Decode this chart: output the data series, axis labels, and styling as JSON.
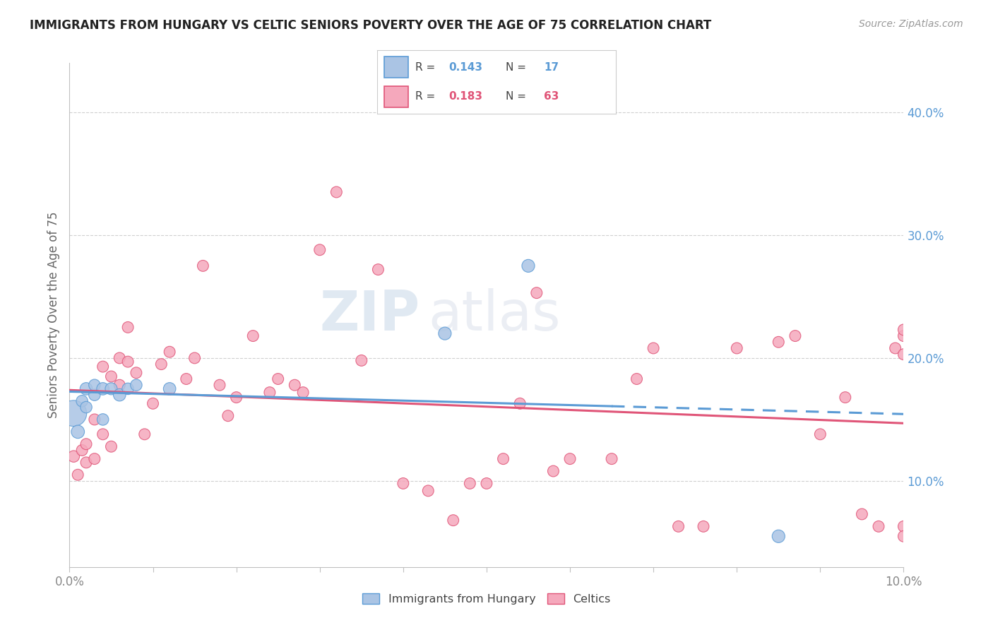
{
  "title": "IMMIGRANTS FROM HUNGARY VS CELTIC SENIORS POVERTY OVER THE AGE OF 75 CORRELATION CHART",
  "source": "Source: ZipAtlas.com",
  "ylabel": "Seniors Poverty Over the Age of 75",
  "xlim": [
    0.0,
    0.1
  ],
  "ylim": [
    0.03,
    0.44
  ],
  "xticks_major": [
    0.0,
    0.01,
    0.02,
    0.03,
    0.04,
    0.05,
    0.06,
    0.07,
    0.08,
    0.09,
    0.1
  ],
  "xticks_label_positions": [
    0.0,
    0.1
  ],
  "xtick_labels": [
    "0.0%",
    "10.0%"
  ],
  "yticks_right": [
    0.1,
    0.2,
    0.3,
    0.4
  ],
  "hungary_R": 0.143,
  "hungary_N": 17,
  "celtics_R": 0.183,
  "celtics_N": 63,
  "hungary_color": "#aac4e4",
  "celtics_color": "#f5a8bc",
  "hungary_line_color": "#5b9bd5",
  "celtics_line_color": "#e05578",
  "watermark_zip": "ZIP",
  "watermark_atlas": "atlas",
  "hungary_x": [
    0.0005,
    0.001,
    0.0015,
    0.002,
    0.002,
    0.003,
    0.003,
    0.004,
    0.004,
    0.005,
    0.006,
    0.007,
    0.008,
    0.012,
    0.045,
    0.055,
    0.085
  ],
  "hungary_y": [
    0.155,
    0.14,
    0.165,
    0.16,
    0.175,
    0.17,
    0.178,
    0.175,
    0.15,
    0.175,
    0.17,
    0.175,
    0.178,
    0.175,
    0.22,
    0.275,
    0.055
  ],
  "hungary_size": [
    350,
    90,
    70,
    70,
    80,
    70,
    70,
    80,
    70,
    75,
    80,
    70,
    70,
    80,
    85,
    85,
    85
  ],
  "celtics_x": [
    0.0005,
    0.001,
    0.0015,
    0.002,
    0.002,
    0.003,
    0.003,
    0.004,
    0.004,
    0.005,
    0.005,
    0.006,
    0.006,
    0.007,
    0.007,
    0.008,
    0.009,
    0.01,
    0.011,
    0.012,
    0.014,
    0.015,
    0.016,
    0.018,
    0.019,
    0.02,
    0.022,
    0.024,
    0.025,
    0.027,
    0.028,
    0.03,
    0.032,
    0.035,
    0.037,
    0.04,
    0.043,
    0.046,
    0.048,
    0.05,
    0.052,
    0.054,
    0.056,
    0.058,
    0.06,
    0.065,
    0.068,
    0.07,
    0.073,
    0.076,
    0.08,
    0.085,
    0.087,
    0.09,
    0.093,
    0.095,
    0.097,
    0.099,
    0.1,
    0.1,
    0.1,
    0.1,
    0.1
  ],
  "celtics_y": [
    0.12,
    0.105,
    0.125,
    0.115,
    0.13,
    0.15,
    0.118,
    0.193,
    0.138,
    0.128,
    0.185,
    0.178,
    0.2,
    0.197,
    0.225,
    0.188,
    0.138,
    0.163,
    0.195,
    0.205,
    0.183,
    0.2,
    0.275,
    0.178,
    0.153,
    0.168,
    0.218,
    0.172,
    0.183,
    0.178,
    0.172,
    0.288,
    0.335,
    0.198,
    0.272,
    0.098,
    0.092,
    0.068,
    0.098,
    0.098,
    0.118,
    0.163,
    0.253,
    0.108,
    0.118,
    0.118,
    0.183,
    0.208,
    0.063,
    0.063,
    0.208,
    0.213,
    0.218,
    0.138,
    0.168,
    0.073,
    0.063,
    0.208,
    0.063,
    0.203,
    0.218,
    0.223,
    0.055
  ],
  "celtics_size": [
    70,
    65,
    65,
    65,
    65,
    65,
    65,
    65,
    65,
    65,
    65,
    65,
    65,
    65,
    65,
    65,
    65,
    65,
    65,
    65,
    65,
    65,
    65,
    65,
    65,
    65,
    65,
    65,
    65,
    65,
    65,
    65,
    65,
    65,
    65,
    65,
    65,
    65,
    65,
    65,
    65,
    65,
    65,
    65,
    65,
    65,
    65,
    65,
    65,
    65,
    65,
    65,
    65,
    65,
    65,
    65,
    65,
    65,
    65,
    65,
    65,
    65,
    65
  ],
  "hungary_line_solid_end": 0.065,
  "background_color": "#ffffff",
  "grid_color": "#d0d0d0",
  "spine_color": "#c0c0c0",
  "axis_tick_color": "#888888",
  "right_axis_color": "#5b9bd5",
  "legend_box_color": "#ffffff",
  "legend_border_color": "#cccccc"
}
